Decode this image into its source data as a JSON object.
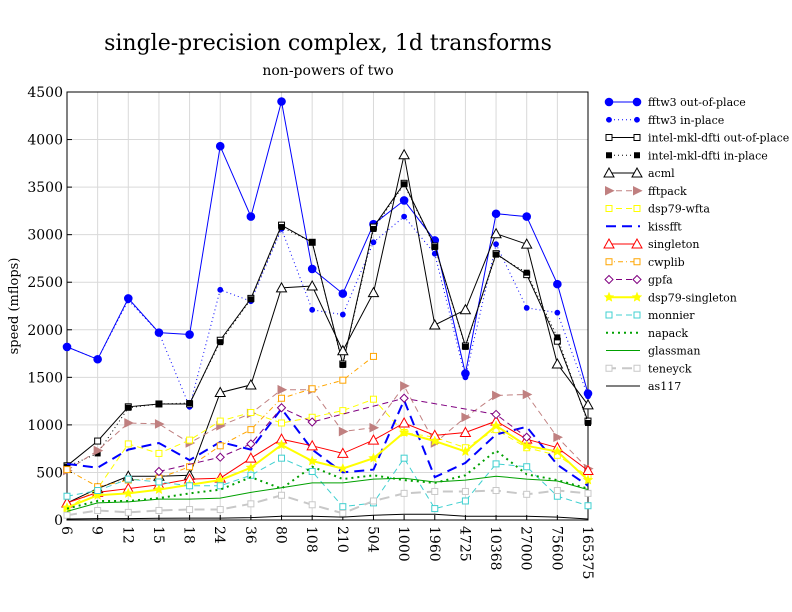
{
  "chart_data": {
    "type": "line",
    "title": "single-precision complex, 1d transforms",
    "subtitle": "non-powers of two",
    "xlabel": "",
    "ylabel": "speed (mflops)",
    "ylim": [
      0,
      4500
    ],
    "yticks": [
      0,
      500,
      1000,
      1500,
      2000,
      2500,
      3000,
      3500,
      4000,
      4500
    ],
    "grid": true,
    "legend_position": "right",
    "categories": [
      "6",
      "9",
      "12",
      "15",
      "18",
      "24",
      "36",
      "80",
      "108",
      "210",
      "504",
      "1000",
      "1960",
      "4725",
      "10368",
      "27000",
      "75600",
      "165375"
    ],
    "series": [
      {
        "name": "fftw3 out-of-place",
        "color": "#0000ff",
        "dash": "",
        "width": 1,
        "marker": "filled-circle",
        "values": [
          1820,
          1690,
          2330,
          1970,
          1950,
          3930,
          3190,
          4400,
          2640,
          2380,
          3110,
          3360,
          2940,
          1540,
          3220,
          3190,
          2480,
          1330
        ]
      },
      {
        "name": "fftw3 in-place",
        "color": "#0000ff",
        "dash": "1,3",
        "width": 1,
        "marker": "small-filled-circle",
        "values": [
          1820,
          1690,
          2310,
          1970,
          1190,
          2420,
          2300,
          3060,
          2210,
          2160,
          2920,
          3190,
          2800,
          1500,
          2900,
          2230,
          2180,
          1300
        ]
      },
      {
        "name": "intel-mkl-dfti out-of-place",
        "color": "#000000",
        "dash": "",
        "width": 1,
        "marker": "open-square",
        "values": [
          570,
          830,
          1190,
          1220,
          1220,
          1890,
          2330,
          3100,
          2920,
          1640,
          3080,
          3540,
          2880,
          1830,
          2800,
          2580,
          1880,
          1040
        ]
      },
      {
        "name": "intel-mkl-dfti in-place",
        "color": "#000000",
        "dash": "1,3",
        "width": 1,
        "marker": "small-filled-square",
        "values": [
          560,
          700,
          1180,
          1220,
          1230,
          1870,
          2320,
          3080,
          2920,
          1630,
          3060,
          3530,
          2870,
          1820,
          2790,
          2600,
          1920,
          1020
        ]
      },
      {
        "name": "acml",
        "color": "#000000",
        "dash": "",
        "width": 1,
        "marker": "open-triangle",
        "values": [
          180,
          330,
          460,
          460,
          470,
          1340,
          1420,
          2440,
          2460,
          1780,
          2390,
          3840,
          2050,
          2210,
          3010,
          2900,
          1640,
          1210
        ]
      },
      {
        "name": "fftpack",
        "color": "#c08080",
        "dash": "6,4",
        "width": 1,
        "marker": "right-triangle",
        "values": [
          520,
          730,
          1020,
          1010,
          810,
          990,
          1120,
          1370,
          1370,
          930,
          970,
          1410,
          810,
          1080,
          1310,
          1320,
          870,
          540
        ]
      },
      {
        "name": "dsp79-wfta",
        "color": "#ffff00",
        "dash": "6,4",
        "width": 1,
        "marker": "open-square",
        "values": [
          120,
          330,
          800,
          700,
          840,
          1040,
          1130,
          1020,
          1080,
          1150,
          1270,
          920,
          870,
          760,
          950,
          760,
          680,
          460
        ]
      },
      {
        "name": "kissfft",
        "color": "#0000ff",
        "dash": "10,6",
        "width": 2,
        "marker": "none",
        "values": [
          590,
          550,
          740,
          810,
          630,
          820,
          740,
          1170,
          740,
          500,
          530,
          1260,
          450,
          600,
          900,
          980,
          580,
          360
        ]
      },
      {
        "name": "singleton",
        "color": "#ff0000",
        "dash": "",
        "width": 1,
        "marker": "open-triangle",
        "values": [
          180,
          290,
          330,
          370,
          430,
          440,
          650,
          850,
          780,
          700,
          840,
          1020,
          890,
          920,
          1040,
          850,
          760,
          520
        ]
      },
      {
        "name": "cwplib",
        "color": "#ffa500",
        "dash": "5,3,1,3",
        "width": 1,
        "marker": "open-square",
        "values": [
          530,
          350,
          420,
          440,
          560,
          780,
          950,
          1280,
          1380,
          1470,
          1720,
          null,
          null,
          null,
          null,
          null,
          null,
          null
        ]
      },
      {
        "name": "gpfa",
        "color": "#800080",
        "dash": "6,4",
        "width": 1,
        "marker": "open-diamond",
        "values": [
          null,
          null,
          null,
          510,
          null,
          660,
          800,
          1180,
          1030,
          null,
          null,
          1280,
          null,
          null,
          1110,
          870,
          null,
          null
        ]
      },
      {
        "name": "dsp79-singleton",
        "color": "#ffff00",
        "dash": "",
        "width": 2,
        "marker": "star",
        "values": [
          130,
          260,
          280,
          320,
          370,
          420,
          550,
          790,
          620,
          540,
          650,
          920,
          830,
          720,
          990,
          780,
          720,
          420
        ]
      },
      {
        "name": "monnier",
        "color": "#40d0d0",
        "dash": "6,4",
        "width": 1,
        "marker": "open-square",
        "values": [
          250,
          310,
          430,
          400,
          360,
          360,
          470,
          650,
          510,
          140,
          180,
          650,
          120,
          200,
          590,
          560,
          250,
          150
        ]
      },
      {
        "name": "napack",
        "color": "#00a000",
        "dash": "2,4",
        "width": 2,
        "marker": "none",
        "values": [
          120,
          200,
          200,
          230,
          280,
          320,
          450,
          330,
          560,
          430,
          470,
          420,
          390,
          470,
          730,
          480,
          420,
          330
        ]
      },
      {
        "name": "glassman",
        "color": "#00a000",
        "dash": "",
        "width": 1,
        "marker": "none",
        "values": [
          90,
          180,
          190,
          220,
          220,
          230,
          290,
          340,
          390,
          390,
          430,
          440,
          400,
          420,
          460,
          430,
          410,
          320
        ]
      },
      {
        "name": "teneyck",
        "color": "#c8c8c8",
        "dash": "10,6",
        "width": 2,
        "marker": "open-square",
        "values": [
          50,
          100,
          80,
          100,
          110,
          110,
          170,
          260,
          160,
          70,
          200,
          280,
          300,
          300,
          310,
          270,
          310,
          280
        ]
      },
      {
        "name": "as117",
        "color": "#000000",
        "dash": "",
        "width": 1,
        "marker": "none",
        "values": [
          10,
          15,
          15,
          18,
          20,
          20,
          25,
          40,
          40,
          30,
          50,
          60,
          60,
          40,
          40,
          40,
          30,
          10
        ]
      }
    ]
  }
}
